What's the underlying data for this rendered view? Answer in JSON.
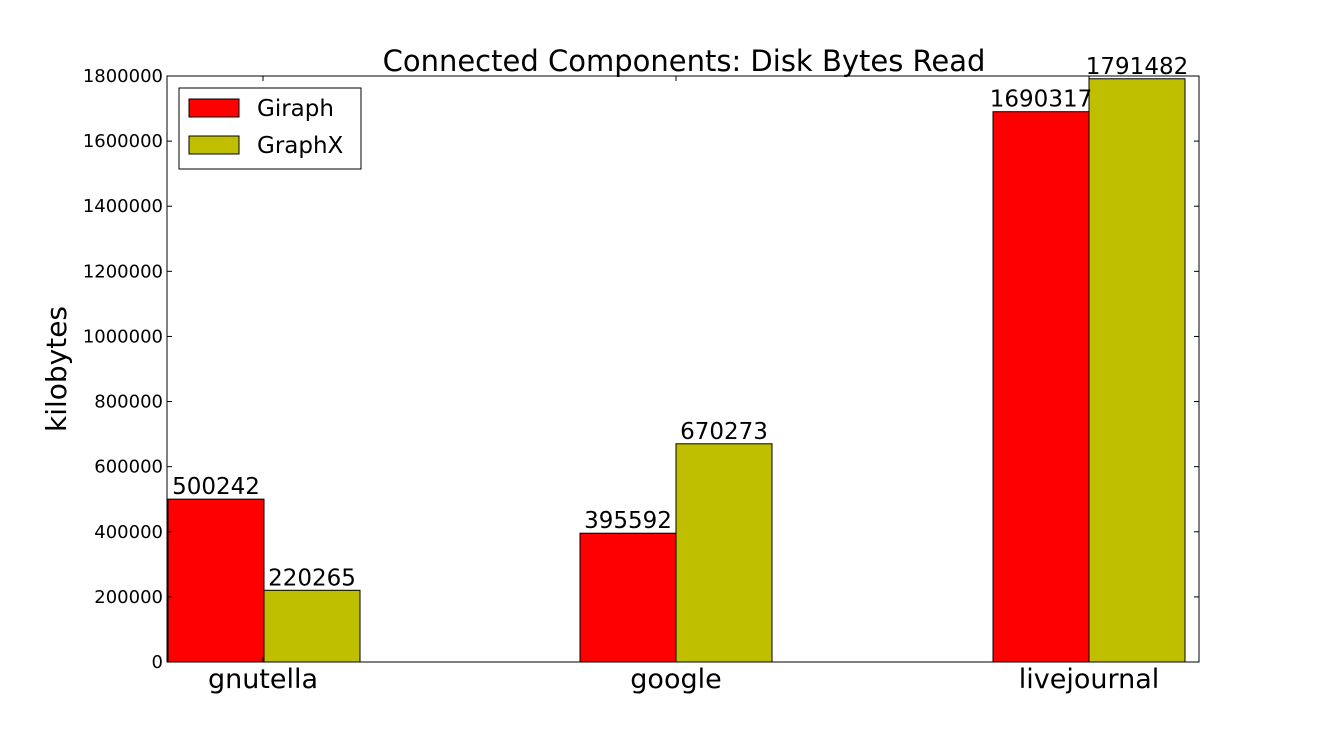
{
  "chart_data": {
    "type": "bar",
    "title": "Connected Components: Disk Bytes Read",
    "xlabel": "",
    "ylabel": "kilobytes",
    "categories": [
      "gnutella",
      "google",
      "livejournal"
    ],
    "series": [
      {
        "name": "Giraph",
        "color": "#ff0000",
        "values": [
          500242,
          395592,
          1690317
        ],
        "labels": [
          "500242",
          "395592",
          "1690317"
        ]
      },
      {
        "name": "GraphX",
        "color": "#bfbf00",
        "values": [
          220265,
          670273,
          1791482
        ],
        "labels": [
          "220265",
          "670273",
          "1791482"
        ]
      }
    ],
    "ylim": [
      0,
      1800000
    ],
    "yticks": [
      0,
      200000,
      400000,
      600000,
      800000,
      1000000,
      1200000,
      1400000,
      1600000,
      1800000
    ],
    "ytick_labels": [
      "0",
      "200000",
      "400000",
      "600000",
      "800000",
      "1000000",
      "1200000",
      "1400000",
      "1600000",
      "1800000"
    ],
    "legend": {
      "position": "top-left"
    },
    "grid": false
  }
}
